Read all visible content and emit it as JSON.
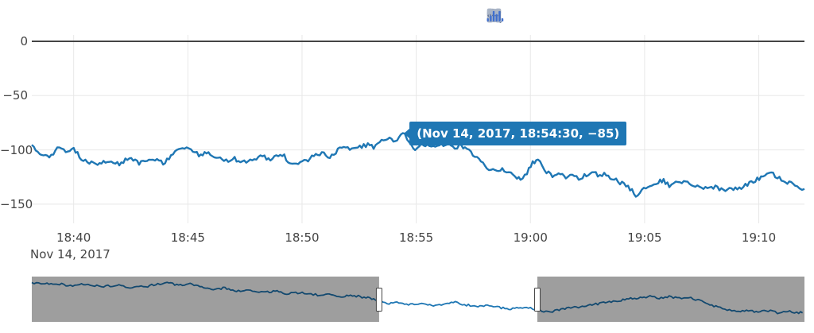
{
  "modebar": {
    "colors": {
      "inactive": "#a9b4c6",
      "active": "#5d6e8f",
      "brand": "#3f6fce"
    },
    "buttons": [
      {
        "name": "camera",
        "active": false,
        "gap": "none"
      },
      {
        "name": "zoom",
        "active": true,
        "gap": "group"
      },
      {
        "name": "pan",
        "active": false,
        "gap": "none"
      },
      {
        "name": "zoom-in",
        "active": false,
        "gap": "group"
      },
      {
        "name": "zoom-out",
        "active": false,
        "gap": "none"
      },
      {
        "name": "autoscale",
        "active": false,
        "gap": "none"
      },
      {
        "name": "reset-axes",
        "active": false,
        "gap": "none"
      },
      {
        "name": "spikelines",
        "active": false,
        "gap": "group"
      },
      {
        "name": "hover-closest",
        "active": true,
        "gap": "none"
      },
      {
        "name": "hover-compare",
        "active": false,
        "gap": "none"
      },
      {
        "name": "notebook",
        "active": false,
        "gap": "wide"
      },
      {
        "name": "plotly-logo",
        "active": false,
        "gap": "wide",
        "brand": true
      }
    ]
  },
  "chart_data": {
    "type": "line",
    "title": "",
    "grid": true,
    "legend": false,
    "line_color": "#1f77b4",
    "x_axis": {
      "date_label": "Nov 14, 2017",
      "ticks": [
        "18:40",
        "18:45",
        "18:50",
        "18:55",
        "19:00",
        "19:05",
        "19:10"
      ],
      "range": [
        "18:38:10",
        "19:12:00"
      ]
    },
    "y_axis": {
      "tick_labels": [
        "0",
        "−50",
        "−100",
        "−150"
      ],
      "tick_values": [
        0,
        -50,
        -100,
        -150
      ],
      "range": [
        -168,
        6
      ],
      "zeroline_value": 0
    },
    "hover_point": {
      "time": "18:54:30",
      "value": -85,
      "label": "(Nov 14, 2017, 18:54:30, −85)"
    },
    "series": [
      {
        "name": "trace-0",
        "color": "#1f77b4",
        "points": [
          [
            "18:38:10",
            -95
          ],
          [
            "18:38:31",
            -103
          ],
          [
            "18:38:56",
            -108
          ],
          [
            "18:39:17",
            -97
          ],
          [
            "18:39:34",
            -101
          ],
          [
            "18:40:00",
            -99
          ],
          [
            "18:40:15",
            -106
          ],
          [
            "18:40:36",
            -112
          ],
          [
            "18:41:08",
            -113
          ],
          [
            "18:41:39",
            -110
          ],
          [
            "18:42:00",
            -113
          ],
          [
            "18:42:21",
            -108
          ],
          [
            "18:42:52",
            -112
          ],
          [
            "18:43:23",
            -108
          ],
          [
            "18:43:55",
            -112
          ],
          [
            "18:44:26",
            -103
          ],
          [
            "18:44:51",
            -97
          ],
          [
            "18:45:08",
            -100
          ],
          [
            "18:45:29",
            -105
          ],
          [
            "18:45:54",
            -102
          ],
          [
            "18:46:10",
            -107
          ],
          [
            "18:46:35",
            -110
          ],
          [
            "18:47:03",
            -108
          ],
          [
            "18:47:23",
            -112
          ],
          [
            "18:47:44",
            -109
          ],
          [
            "18:48:16",
            -106
          ],
          [
            "18:48:37",
            -109
          ],
          [
            "18:49:08",
            -104
          ],
          [
            "18:49:29",
            -112
          ],
          [
            "18:49:50",
            -113
          ],
          [
            "18:50:11",
            -110
          ],
          [
            "18:50:31",
            -105
          ],
          [
            "18:50:52",
            -103
          ],
          [
            "18:51:13",
            -107
          ],
          [
            "18:51:34",
            -100
          ],
          [
            "18:51:55",
            -98
          ],
          [
            "18:52:16",
            -100
          ],
          [
            "18:52:37",
            -97
          ],
          [
            "18:52:58",
            -95
          ],
          [
            "18:53:08",
            -98
          ],
          [
            "18:53:29",
            -91
          ],
          [
            "18:53:50",
            -89
          ],
          [
            "18:54:00",
            -92
          ],
          [
            "18:54:30",
            -85
          ],
          [
            "18:54:42",
            -93
          ],
          [
            "18:54:57",
            -99
          ],
          [
            "18:55:09",
            -95
          ],
          [
            "18:55:24",
            -97
          ],
          [
            "18:55:45",
            -96
          ],
          [
            "18:56:06",
            -95
          ],
          [
            "18:56:27",
            -96
          ],
          [
            "18:56:41",
            -100
          ],
          [
            "18:56:54",
            -96
          ],
          [
            "18:57:08",
            -99
          ],
          [
            "18:57:29",
            -104
          ],
          [
            "18:57:50",
            -110
          ],
          [
            "18:58:11",
            -118
          ],
          [
            "18:58:32",
            -121
          ],
          [
            "18:58:46",
            -118
          ],
          [
            "18:59:03",
            -121
          ],
          [
            "18:59:20",
            -125
          ],
          [
            "18:59:34",
            -127
          ],
          [
            "18:59:51",
            -121
          ],
          [
            "19:00:06",
            -112
          ],
          [
            "19:00:20",
            -108
          ],
          [
            "19:00:37",
            -118
          ],
          [
            "19:00:58",
            -125
          ],
          [
            "19:01:19",
            -122
          ],
          [
            "19:01:33",
            -126
          ],
          [
            "19:01:50",
            -123
          ],
          [
            "19:02:07",
            -127
          ],
          [
            "19:02:22",
            -124
          ],
          [
            "19:02:42",
            -120
          ],
          [
            "19:02:57",
            -123
          ],
          [
            "19:03:14",
            -122
          ],
          [
            "19:03:30",
            -125
          ],
          [
            "19:03:45",
            -128
          ],
          [
            "19:04:06",
            -132
          ],
          [
            "19:04:27",
            -137
          ],
          [
            "19:04:37",
            -143
          ],
          [
            "19:04:58",
            -136
          ],
          [
            "19:05:19",
            -132
          ],
          [
            "19:05:36",
            -129
          ],
          [
            "19:05:50",
            -128
          ],
          [
            "19:06:05",
            -133
          ],
          [
            "19:06:22",
            -131
          ],
          [
            "19:06:38",
            -129
          ],
          [
            "19:06:53",
            -130
          ],
          [
            "19:07:08",
            -135
          ],
          [
            "19:07:24",
            -133
          ],
          [
            "19:07:45",
            -136
          ],
          [
            "19:08:06",
            -134
          ],
          [
            "19:08:27",
            -137
          ],
          [
            "19:08:48",
            -135
          ],
          [
            "19:09:09",
            -136
          ],
          [
            "19:09:30",
            -132
          ],
          [
            "19:09:51",
            -128
          ],
          [
            "19:10:11",
            -124
          ],
          [
            "19:10:32",
            -121
          ],
          [
            "19:10:49",
            -125
          ],
          [
            "19:11:10",
            -131
          ],
          [
            "19:11:25",
            -129
          ],
          [
            "19:11:41",
            -133
          ],
          [
            "19:12:00",
            -136
          ]
        ]
      }
    ],
    "rangeslider": {
      "visible": true,
      "selected_window_fraction": [
        0.4495,
        0.6543
      ],
      "mask_color": "rgba(0,0,0,0.38)",
      "profile": [
        [
          0.0,
          0.13
        ],
        [
          0.012,
          0.17
        ],
        [
          0.03,
          0.15
        ],
        [
          0.05,
          0.2
        ],
        [
          0.07,
          0.17
        ],
        [
          0.09,
          0.22
        ],
        [
          0.11,
          0.19
        ],
        [
          0.13,
          0.24
        ],
        [
          0.15,
          0.21
        ],
        [
          0.163,
          0.16
        ],
        [
          0.175,
          0.13
        ],
        [
          0.19,
          0.19
        ],
        [
          0.205,
          0.15
        ],
        [
          0.22,
          0.24
        ],
        [
          0.235,
          0.3
        ],
        [
          0.25,
          0.25
        ],
        [
          0.265,
          0.32
        ],
        [
          0.28,
          0.29
        ],
        [
          0.3,
          0.35
        ],
        [
          0.315,
          0.32
        ],
        [
          0.33,
          0.38
        ],
        [
          0.35,
          0.35
        ],
        [
          0.37,
          0.41
        ],
        [
          0.385,
          0.38
        ],
        [
          0.4,
          0.44
        ],
        [
          0.415,
          0.41
        ],
        [
          0.43,
          0.46
        ],
        [
          0.445,
          0.5
        ],
        [
          0.449,
          0.53
        ],
        [
          0.46,
          0.6
        ],
        [
          0.475,
          0.57
        ],
        [
          0.49,
          0.62
        ],
        [
          0.505,
          0.59
        ],
        [
          0.52,
          0.64
        ],
        [
          0.535,
          0.61
        ],
        [
          0.548,
          0.57
        ],
        [
          0.56,
          0.62
        ],
        [
          0.575,
          0.66
        ],
        [
          0.59,
          0.63
        ],
        [
          0.605,
          0.68
        ],
        [
          0.62,
          0.72
        ],
        [
          0.635,
          0.68
        ],
        [
          0.648,
          0.71
        ],
        [
          0.655,
          0.74
        ],
        [
          0.668,
          0.78
        ],
        [
          0.68,
          0.75
        ],
        [
          0.695,
          0.7
        ],
        [
          0.71,
          0.66
        ],
        [
          0.725,
          0.62
        ],
        [
          0.74,
          0.58
        ],
        [
          0.755,
          0.54
        ],
        [
          0.77,
          0.5
        ],
        [
          0.785,
          0.47
        ],
        [
          0.8,
          0.44
        ],
        [
          0.812,
          0.47
        ],
        [
          0.825,
          0.44
        ],
        [
          0.838,
          0.48
        ],
        [
          0.85,
          0.46
        ],
        [
          0.862,
          0.52
        ],
        [
          0.875,
          0.6
        ],
        [
          0.888,
          0.68
        ],
        [
          0.9,
          0.74
        ],
        [
          0.912,
          0.78
        ],
        [
          0.925,
          0.74
        ],
        [
          0.94,
          0.79
        ],
        [
          0.953,
          0.75
        ],
        [
          0.965,
          0.8
        ],
        [
          0.978,
          0.76
        ],
        [
          0.99,
          0.8
        ],
        [
          1.0,
          0.79
        ]
      ]
    }
  }
}
